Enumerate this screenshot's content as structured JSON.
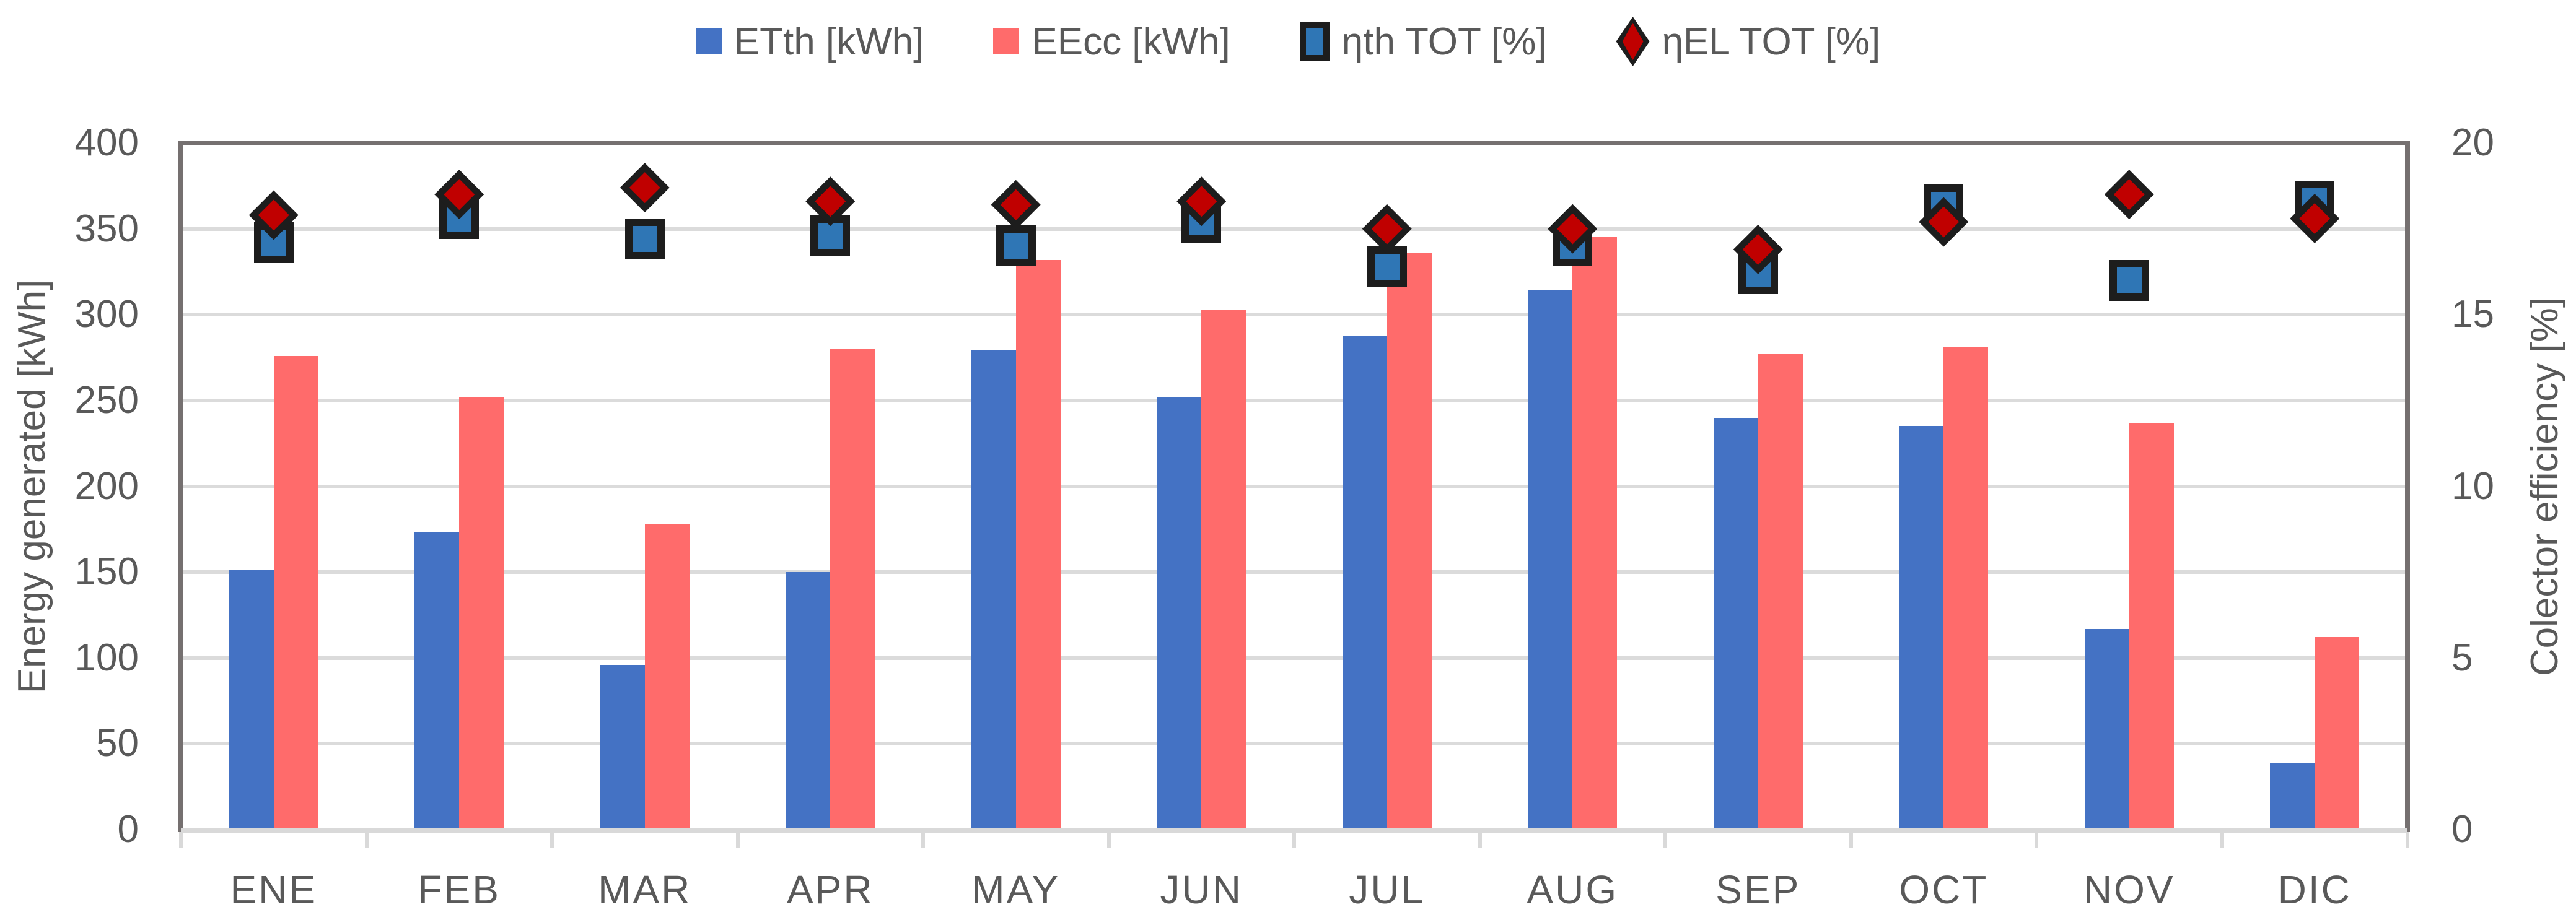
{
  "legend": {
    "items": [
      {
        "label": "ETth [kWh]",
        "marker": "square-plain",
        "color": "#4472C4"
      },
      {
        "label": "EEcc [kWh]",
        "marker": "square-plain",
        "color": "#FF6B6B"
      },
      {
        "label": "ηth TOT [%]",
        "marker": "square-bordered",
        "color": "#2F76B5"
      },
      {
        "label": "ηEL TOT [%]",
        "marker": "diamond-bordered",
        "color": "#C00000"
      }
    ]
  },
  "chart_data": {
    "type": "combo bar + scatter",
    "categories": [
      "ENE",
      "FEB",
      "MAR",
      "APR",
      "MAY",
      "JUN",
      "JUL",
      "AUG",
      "SEP",
      "OCT",
      "NOV",
      "DIC"
    ],
    "series": [
      {
        "name": "ETth [kWh]",
        "type": "bar",
        "axis": "left",
        "color": "#4472C4",
        "values": [
          151,
          173,
          96,
          150,
          279,
          252,
          288,
          314,
          240,
          235,
          117,
          39
        ]
      },
      {
        "name": "EEcc [kWh]",
        "type": "bar",
        "axis": "left",
        "color": "#FF6B6B",
        "values": [
          276,
          252,
          178,
          280,
          332,
          303,
          336,
          345,
          277,
          281,
          237,
          112
        ]
      },
      {
        "name": "ηth TOT [%]",
        "type": "scatter",
        "marker": "square",
        "axis": "right",
        "color": "#2F76B5",
        "values": [
          17.1,
          17.8,
          17.2,
          17.3,
          17.0,
          17.7,
          16.4,
          17.0,
          16.2,
          18.2,
          16.0,
          18.3
        ]
      },
      {
        "name": "ηEL TOT [%]",
        "type": "scatter",
        "marker": "diamond",
        "axis": "right",
        "color": "#C00000",
        "values": [
          17.9,
          18.5,
          18.7,
          18.3,
          18.2,
          18.3,
          17.5,
          17.5,
          16.9,
          17.7,
          18.5,
          17.8
        ]
      }
    ],
    "left_axis": {
      "title": "Energy generated [kWh]",
      "min": 0,
      "max": 400,
      "step": 50
    },
    "right_axis": {
      "title": "Colector efficiency [%]",
      "min": 0,
      "max": 20,
      "step": 5
    },
    "grid": true,
    "legend_position": "top"
  },
  "colors": {
    "bar_blue": "#4472C4",
    "bar_red": "#FF6B6B",
    "marker_blue": "#2F76B5",
    "marker_red": "#C00000",
    "marker_border": "#1D1D1D",
    "gridline": "#DBDBDB",
    "axis_line": "#D9D9D9",
    "plot_border": "#757070",
    "text": "#595959"
  }
}
